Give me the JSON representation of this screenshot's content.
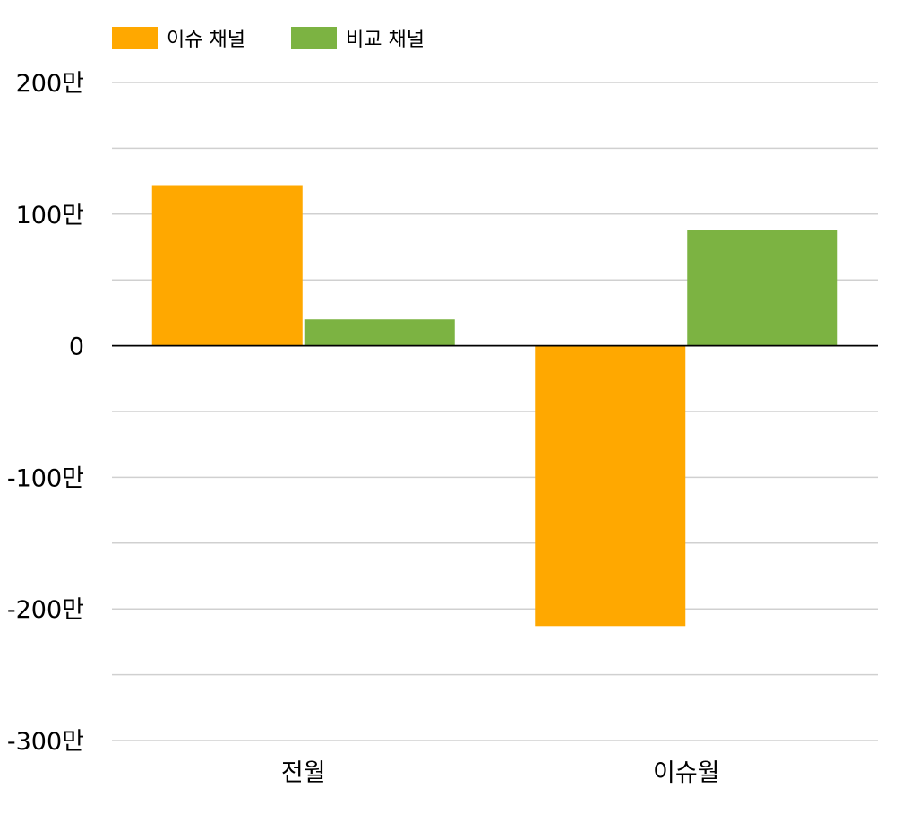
{
  "chart_data": {
    "type": "bar",
    "categories": [
      "전월",
      "이슈월"
    ],
    "series": [
      {
        "name": "이슈 채널",
        "color": "#FFA800",
        "values": [
          1220000,
          -2130000
        ]
      },
      {
        "name": "비교 채널",
        "color": "#7CB342",
        "values": [
          200000,
          880000
        ]
      }
    ],
    "ylim": [
      -3000000,
      2000000
    ],
    "y_ticks": [
      {
        "value": 2000000,
        "label": "200만"
      },
      {
        "value": 1000000,
        "label": "100만"
      },
      {
        "value": 0,
        "label": "0"
      },
      {
        "value": -1000000,
        "label": "-100만"
      },
      {
        "value": -2000000,
        "label": "-200만"
      },
      {
        "value": -3000000,
        "label": "-300만"
      }
    ],
    "minor_grid_step": 500000,
    "grid": true,
    "legend_position": "top-left",
    "title": "",
    "xlabel": "",
    "ylabel": ""
  }
}
